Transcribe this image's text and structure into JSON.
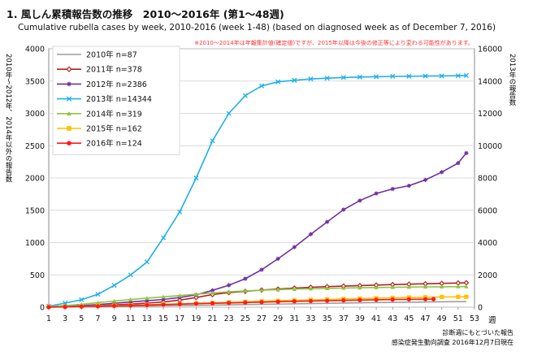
{
  "page": {
    "title": "1. 風しん累積報告数の推移　2010～2016年 (第1～48週)",
    "subtitle": "Cumulative rubella cases by week, 2010-2016 (week 1-48)  (based on diagnosed week as of December 7, 2016)",
    "note": "※2010～2014年は年報集計値(確定値)ですが、2015年以降は今後の修正等により変わる可能性があります。",
    "footer_line1": "診断週にもとづいた報告",
    "footer_line2": "感染症発生動向調査 2016年12月7日現在",
    "colors": {
      "note": "#ff3333",
      "grid": "#d0d0d0",
      "border": "#888888"
    }
  },
  "chart_data": {
    "type": "line",
    "title": "",
    "xlabel": "週",
    "ylabel_left": "2010年〜2012年、2014年以外の報告数",
    "ylabel_right": "2013年の報告数",
    "xlim": [
      1,
      53
    ],
    "x_ticks": [
      1,
      3,
      5,
      7,
      9,
      11,
      13,
      15,
      17,
      19,
      21,
      23,
      25,
      27,
      29,
      31,
      33,
      35,
      37,
      39,
      41,
      43,
      45,
      47,
      49,
      51,
      53
    ],
    "ylim_left": [
      0,
      4000
    ],
    "y_ticks_left": [
      0,
      500,
      1000,
      1500,
      2000,
      2500,
      3000,
      3500,
      4000
    ],
    "ylim_right": [
      0,
      16000
    ],
    "y_ticks_right": [
      0,
      2000,
      4000,
      6000,
      8000,
      10000,
      12000,
      14000,
      16000
    ],
    "grid": true,
    "legend_position": "top-left",
    "series": [
      {
        "name": "2010年 n=87",
        "color": "#9e9e9e",
        "marker": "none",
        "axis": "left",
        "x": [
          1,
          10,
          20,
          30,
          40,
          52
        ],
        "y": [
          1,
          10,
          30,
          50,
          70,
          87
        ]
      },
      {
        "name": "2011年 n=378",
        "color": "#b22222",
        "marker": "diamond",
        "axis": "left",
        "x": [
          1,
          3,
          5,
          7,
          9,
          11,
          13,
          15,
          17,
          19,
          21,
          23,
          25,
          27,
          29,
          31,
          33,
          35,
          37,
          39,
          41,
          43,
          45,
          47,
          49,
          51,
          52
        ],
        "y": [
          3,
          8,
          15,
          24,
          35,
          48,
          63,
          80,
          110,
          150,
          195,
          225,
          245,
          265,
          280,
          295,
          308,
          318,
          326,
          334,
          342,
          350,
          356,
          362,
          368,
          374,
          378
        ]
      },
      {
        "name": "2012年 n=2386",
        "color": "#7030a0",
        "marker": "star",
        "axis": "left",
        "x": [
          1,
          3,
          5,
          7,
          9,
          11,
          13,
          15,
          17,
          19,
          21,
          23,
          25,
          27,
          29,
          31,
          33,
          35,
          37,
          39,
          41,
          43,
          45,
          47,
          49,
          51,
          52
        ],
        "y": [
          4,
          12,
          25,
          40,
          60,
          80,
          100,
          120,
          150,
          190,
          260,
          340,
          440,
          580,
          750,
          930,
          1130,
          1320,
          1510,
          1650,
          1760,
          1830,
          1880,
          1970,
          2090,
          2230,
          2386
        ]
      },
      {
        "name": "2013年 n=14344",
        "color": "#1fb0ea",
        "marker": "x",
        "axis": "right",
        "x": [
          1,
          3,
          5,
          7,
          9,
          11,
          13,
          15,
          17,
          19,
          21,
          23,
          25,
          27,
          29,
          31,
          33,
          35,
          37,
          39,
          41,
          43,
          45,
          47,
          49,
          51,
          52
        ],
        "y": [
          60,
          250,
          460,
          800,
          1350,
          2000,
          2800,
          4300,
          5900,
          8000,
          10300,
          12000,
          13100,
          13700,
          13950,
          14050,
          14130,
          14180,
          14220,
          14250,
          14270,
          14290,
          14300,
          14310,
          14320,
          14330,
          14344
        ]
      },
      {
        "name": "2014年 n=319",
        "color": "#8dc63f",
        "marker": "triangle",
        "axis": "left",
        "x": [
          1,
          3,
          5,
          7,
          9,
          11,
          13,
          15,
          17,
          19,
          21,
          23,
          25,
          27,
          29,
          31,
          33,
          35,
          37,
          39,
          41,
          43,
          45,
          47,
          49,
          51,
          52
        ],
        "y": [
          10,
          25,
          45,
          70,
          95,
          118,
          140,
          160,
          180,
          200,
          220,
          238,
          252,
          263,
          272,
          280,
          286,
          291,
          296,
          300,
          304,
          308,
          311,
          314,
          316,
          318,
          319
        ]
      },
      {
        "name": "2015年 n=162",
        "color": "#ffc000",
        "marker": "square",
        "axis": "left",
        "x": [
          1,
          3,
          5,
          7,
          9,
          11,
          13,
          15,
          17,
          19,
          21,
          23,
          25,
          27,
          29,
          31,
          33,
          35,
          37,
          39,
          41,
          43,
          45,
          47,
          49,
          51,
          52
        ],
        "y": [
          3,
          8,
          14,
          20,
          26,
          32,
          38,
          45,
          52,
          60,
          68,
          76,
          84,
          92,
          99,
          106,
          113,
          120,
          127,
          133,
          139,
          145,
          150,
          154,
          158,
          160,
          162
        ]
      },
      {
        "name": "2016年 n=124",
        "color": "#ff1a1a",
        "marker": "circle",
        "axis": "left",
        "x": [
          1,
          3,
          5,
          7,
          9,
          11,
          13,
          15,
          17,
          19,
          21,
          23,
          25,
          27,
          29,
          31,
          33,
          35,
          37,
          39,
          41,
          43,
          45,
          47,
          48
        ],
        "y": [
          2,
          5,
          10,
          15,
          20,
          26,
          33,
          40,
          47,
          54,
          60,
          66,
          72,
          78,
          84,
          90,
          95,
          100,
          105,
          110,
          114,
          118,
          121,
          123,
          124
        ]
      }
    ]
  }
}
